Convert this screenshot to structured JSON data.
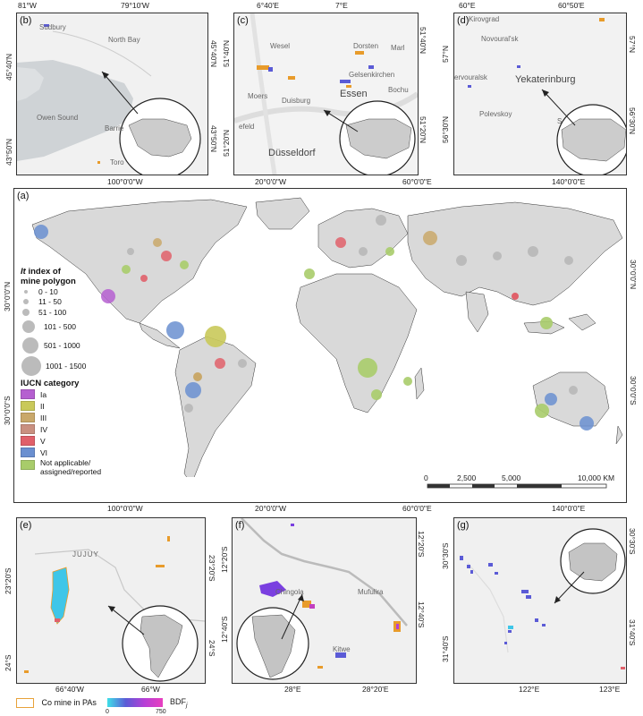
{
  "panels": {
    "b": {
      "label": "(b)",
      "top_ticks": [
        "81°W",
        "79°10'W"
      ],
      "left_ticks": [
        "45°40'N",
        "43°50'N"
      ],
      "right_ticks": [
        "45°40'N",
        "43°50'N"
      ],
      "places": [
        "Sudbury",
        "North Bay",
        "Owen Sound",
        "Barrie",
        "Toro"
      ]
    },
    "c": {
      "label": "(c)",
      "top_ticks": [
        "6°40'E",
        "7°E"
      ],
      "left_ticks": [
        "51°40'N",
        "51°20'N"
      ],
      "right_ticks": [
        "51°40'N",
        "51°20'N"
      ],
      "places": [
        "Wesel",
        "Dorsten",
        "Marl",
        "Gelsenkirchen",
        "Bochu",
        "Essen",
        "Moers",
        "Duisburg",
        "efeld",
        "Düsseldorf"
      ]
    },
    "d": {
      "label": "(d)",
      "top_ticks": [
        "60°E",
        "60°50'E"
      ],
      "left_ticks": [
        "57°N",
        "56°30'N"
      ],
      "right_ticks": [
        "57°N",
        "56°30'N"
      ],
      "places": [
        "Kirovgrad",
        "Novoural'sk",
        "ervouralsk",
        "Yekaterinburg",
        "Polevskoy",
        "S"
      ]
    },
    "a": {
      "label": "(a)",
      "top_ticks": [
        "100°0'0\"W",
        "20°0'0\"W",
        "60°0'0\"E",
        "140°0'0\"E"
      ],
      "bottom_ticks": [
        "100°0'0\"W",
        "20°0'0\"W",
        "60°0'0\"E",
        "140°0'0\"E"
      ],
      "left_ticks": [
        "30°0'0\"N",
        "30°0'0\"S"
      ],
      "right_ticks": [
        "30°0'0\"N",
        "30°0'0\"S"
      ],
      "scale_labels": [
        "0",
        "2,500",
        "5,000",
        "10,000 KM"
      ]
    },
    "e": {
      "label": "(e)",
      "bottom_ticks": [
        "66°40'W",
        "66°W"
      ],
      "left_ticks": [
        "23°20'S",
        "24°S"
      ],
      "right_ticks": [
        "23°20'S",
        "24°S"
      ],
      "places": [
        "JUJUY"
      ]
    },
    "f": {
      "label": "(f)",
      "bottom_ticks": [
        "28°E",
        "28°20'E"
      ],
      "left_ticks": [
        "12°20'S",
        "12°40'S"
      ],
      "right_ticks": [
        "12°20'S",
        "12°40'S"
      ],
      "places": [
        "Chingola",
        "Mufulira",
        "Kitwe"
      ]
    },
    "g": {
      "label": "(g)",
      "bottom_ticks": [
        "122°E",
        "123°E"
      ],
      "left_ticks": [
        "30°30'S",
        "31°40'S"
      ],
      "right_ticks": [
        "30°30'S",
        "31°40'S"
      ]
    }
  },
  "legend": {
    "size_title_1": "It",
    "size_title_2": " index of",
    "size_title_3": "mine polygon",
    "size_classes": [
      "0 - 10",
      "11 - 50",
      "51 - 100",
      "101 - 500",
      "501 - 1000",
      "1001 - 1500"
    ],
    "iucn_title": "IUCN category",
    "iucn_classes": [
      {
        "label": "Ia",
        "color": "#b55fd0"
      },
      {
        "label": "II",
        "color": "#c9c95a"
      },
      {
        "label": "III",
        "color": "#c9a86a"
      },
      {
        "label": "IV",
        "color": "#c99080"
      },
      {
        "label": "V",
        "color": "#e0606a"
      },
      {
        "label": "VI",
        "color": "#6a8fd0"
      },
      {
        "label": "Not applicable/\nassigned/reported",
        "color": "#a8cc6a"
      }
    ]
  },
  "bottom_legend": {
    "co_mine_label": "Co mine in PAs",
    "bdf_min": "0",
    "bdf_max": "750",
    "bdf_label": "BDF",
    "bdf_sub": "j"
  }
}
